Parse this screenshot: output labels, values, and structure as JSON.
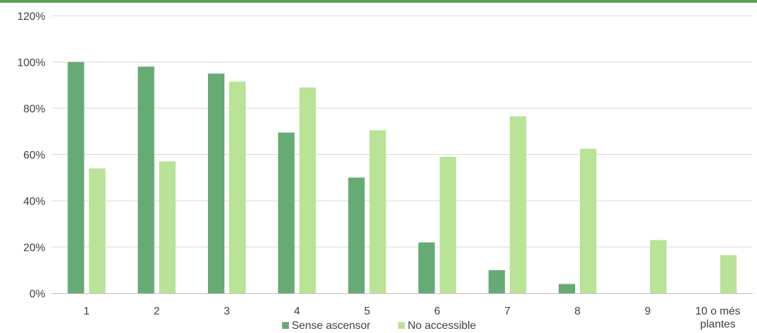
{
  "colors": {
    "top_border": "#5aa05a",
    "grid": "#d9d9d9",
    "axis": "#bfbfbf",
    "text": "#404040"
  },
  "chart_data": {
    "type": "bar",
    "categories": [
      "1",
      "2",
      "3",
      "4",
      "5",
      "6",
      "7",
      "8",
      "9",
      "10 o més plantes"
    ],
    "category_label_lines": [
      [
        "1"
      ],
      [
        "2"
      ],
      [
        "3"
      ],
      [
        "4"
      ],
      [
        "5"
      ],
      [
        "6"
      ],
      [
        "7"
      ],
      [
        "8"
      ],
      [
        "9"
      ],
      [
        "10 o més",
        "plantes"
      ]
    ],
    "series": [
      {
        "name": "Sense ascensor",
        "color": "#67ab74",
        "values": [
          100,
          98,
          95,
          69.5,
          50,
          22,
          10,
          4,
          0,
          0
        ]
      },
      {
        "name": "No accessible",
        "color": "#b9e397",
        "values": [
          54,
          57,
          91.5,
          89,
          70.5,
          59,
          76.5,
          62.5,
          23,
          16.5
        ]
      }
    ],
    "yticks": [
      "0%",
      "20%",
      "40%",
      "60%",
      "80%",
      "100%",
      "120%"
    ],
    "ylim": [
      0,
      120
    ],
    "unit": "%",
    "grid": true,
    "legend_position": "bottom"
  }
}
